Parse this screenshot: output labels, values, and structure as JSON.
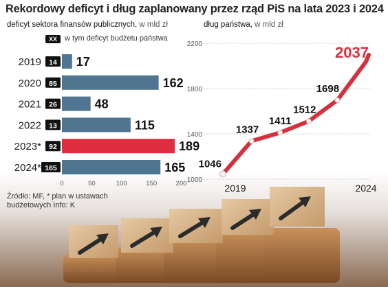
{
  "title": "Rekordowy deficyt i dług zaplanowany przez rząd PiS na lata 2023 i 2024",
  "left_panel": {
    "subtitle": "deficyt sektora finansów publicznych,",
    "unit": "w mld zł",
    "legend_key": "XX",
    "legend_text": "w tym deficyt budżetu państwa"
  },
  "right_panel": {
    "subtitle": "dług państwa,",
    "unit": "w mld zł"
  },
  "source": "Źródło: MF, * plan w ustawach budżetowych  Info: K",
  "colors": {
    "bar": "#4f7591",
    "highlight": "#de2e3f",
    "line": "#d5303e",
    "marker": "#f1f1f1"
  },
  "chart_data": [
    {
      "type": "bar",
      "orientation": "horizontal",
      "categories": [
        "2019",
        "2020",
        "2021",
        "2022",
        "2023*",
        "2024*"
      ],
      "series": [
        {
          "values": [
            17,
            162,
            48,
            115,
            189,
            165
          ]
        },
        {
          "name": "w tym deficyt budżetu państwa",
          "values": [
            14,
            85,
            26,
            13,
            92,
            165
          ]
        }
      ],
      "highlight_category": "2023*",
      "xticks": [
        0,
        50,
        100,
        150,
        200
      ],
      "xlim": [
        0,
        200
      ]
    },
    {
      "type": "line",
      "x": [
        2019,
        2020,
        2021,
        2022,
        2023,
        2024
      ],
      "values": [
        1046,
        1337,
        1411,
        1512,
        1698,
        2037
      ],
      "xticks": [
        "2019",
        "2024"
      ],
      "yticks": [
        1000,
        1400,
        1800,
        2200
      ],
      "ylim": [
        1000,
        2200
      ]
    }
  ]
}
